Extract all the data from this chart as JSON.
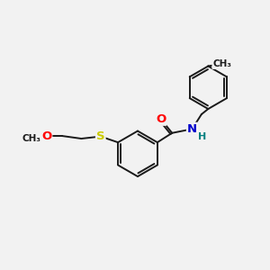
{
  "background_color": "#f2f2f2",
  "bond_color": "#1a1a1a",
  "bond_width": 1.4,
  "figsize": [
    3.0,
    3.0
  ],
  "dpi": 100,
  "atom_colors": {
    "O": "#ff0000",
    "N": "#0000cc",
    "S": "#cccc00",
    "H": "#008080",
    "C": "#1a1a1a"
  },
  "font_size": 9.5
}
